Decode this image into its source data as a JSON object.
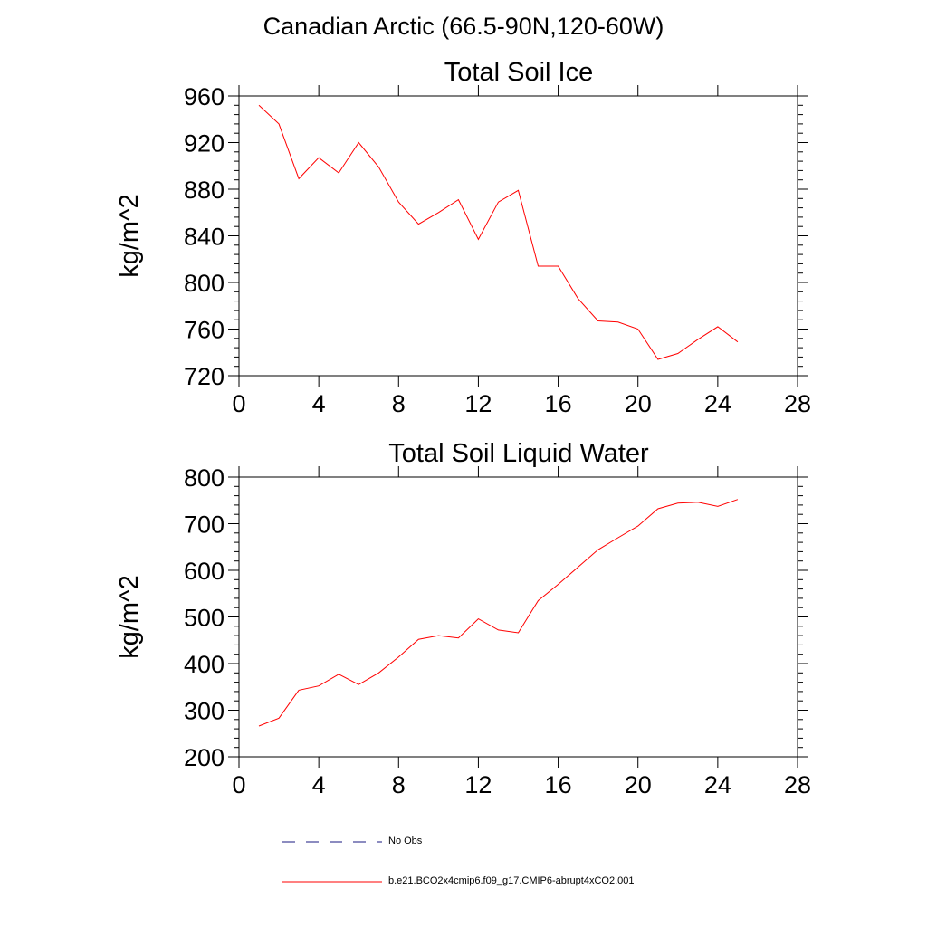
{
  "figure": {
    "title": "Canadian Arctic (66.5-90N,120-60W)"
  },
  "chart_data": [
    {
      "type": "line",
      "title": "Total Soil Ice",
      "xlabel": "",
      "ylabel": "kg/m^2",
      "xlim": [
        0,
        28
      ],
      "ylim": [
        720,
        960
      ],
      "xticks": [
        0,
        4,
        8,
        12,
        16,
        20,
        24,
        28
      ],
      "yticks": [
        720,
        760,
        800,
        840,
        880,
        920,
        960
      ],
      "series": [
        {
          "color": "#ff0000",
          "x": [
            1,
            2,
            3,
            4,
            5,
            6,
            7,
            8,
            9,
            10,
            11,
            12,
            13,
            14,
            15,
            16,
            17,
            18,
            19,
            20,
            21,
            22,
            23,
            24,
            25
          ],
          "y": [
            952,
            936,
            889,
            907,
            894,
            920,
            899,
            869,
            850,
            860,
            871,
            837,
            869,
            879,
            814,
            814,
            786,
            767,
            766,
            760,
            734,
            739,
            751,
            762,
            749
          ]
        }
      ]
    },
    {
      "type": "line",
      "title": "Total Soil Liquid Water",
      "xlabel": "",
      "ylabel": "kg/m^2",
      "xlim": [
        0,
        28
      ],
      "ylim": [
        200,
        800
      ],
      "xticks": [
        0,
        4,
        8,
        12,
        16,
        20,
        24,
        28
      ],
      "yticks": [
        200,
        300,
        400,
        500,
        600,
        700,
        800
      ],
      "series": [
        {
          "color": "#ff0000",
          "x": [
            1,
            2,
            3,
            4,
            5,
            6,
            7,
            8,
            9,
            10,
            11,
            12,
            13,
            14,
            15,
            16,
            17,
            18,
            19,
            20,
            21,
            22,
            23,
            24,
            25
          ],
          "y": [
            266,
            283,
            343,
            352,
            377,
            355,
            380,
            414,
            452,
            460,
            455,
            496,
            472,
            466,
            535,
            570,
            607,
            644,
            670,
            695,
            732,
            744,
            746,
            737,
            752
          ]
        }
      ]
    }
  ],
  "legend": {
    "items": [
      {
        "label": "No Obs",
        "color": "#1a1a80",
        "dash": "14,12"
      },
      {
        "label": "b.e21.BCO2x4cmip6.f09_g17.CMIP6-abrupt4xCO2.001",
        "color": "#ff0000",
        "dash": ""
      }
    ]
  }
}
